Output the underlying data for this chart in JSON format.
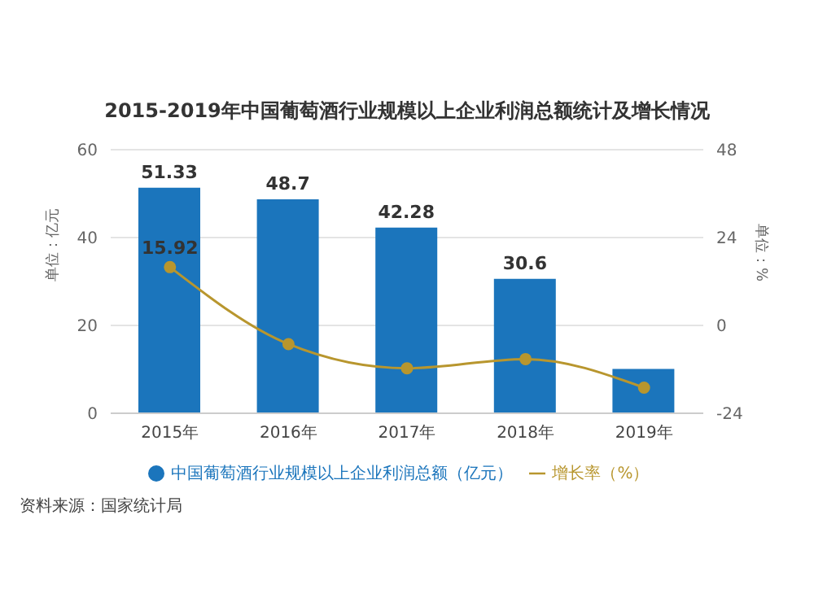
{
  "chart_data": {
    "type": "bar",
    "title": "2015-2019年中国葡萄酒行业规模以上企业利润总额统计及增长情况",
    "ylabel": "单位：亿元",
    "y2label": "单位：%",
    "categories": [
      "2015年",
      "2016年",
      "2017年",
      "2018年",
      "2019年"
    ],
    "series": [
      {
        "name": "中国葡萄酒行业规模以上企业利润总额（亿元）",
        "color": "#1b75bc",
        "values": [
          51.33,
          48.7,
          42.28,
          30.6,
          10.1
        ],
        "value_labels": [
          "51.33",
          "48.7",
          "42.28",
          "30.6",
          null
        ]
      },
      {
        "name": "增长率（%）",
        "type": "line",
        "axis": "y2",
        "color": "#b8962e",
        "values": [
          15.92,
          -5.1,
          -11.7,
          -9.2,
          -17
        ],
        "value_labels": [
          "15.92",
          null,
          null,
          null,
          null
        ]
      }
    ],
    "ylim": [
      0,
      60
    ],
    "yticks": [
      0,
      20,
      40,
      60
    ],
    "y2lim": [
      -24,
      48
    ],
    "y2ticks": [
      -24,
      0,
      24,
      48
    ],
    "grid": "y",
    "legend": "bottom",
    "marker": "circle",
    "line_style": "solid",
    "annotations": [
      "资料来源：国家统计局"
    ]
  }
}
